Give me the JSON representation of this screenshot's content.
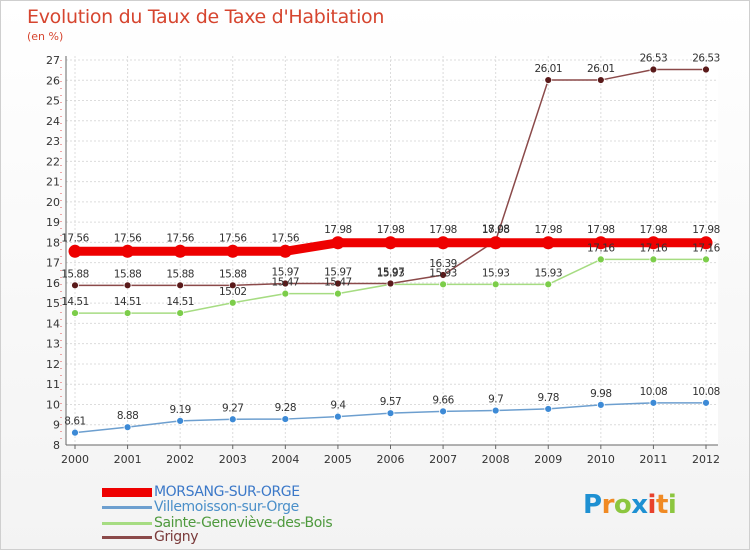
{
  "title": "Evolution du Taux de Taxe d'Habitation",
  "subtitle": "(en %)",
  "logo": {
    "text": "Proxiti",
    "colors": [
      "#1e90d2",
      "#f08a24",
      "#8cc63f",
      "#1e90d2",
      "#e8412c",
      "#f08a24",
      "#8cc63f"
    ]
  },
  "chart_data": {
    "type": "line",
    "x": [
      "2000",
      "2001",
      "2002",
      "2003",
      "2004",
      "2005",
      "2006",
      "2007",
      "2008",
      "2009",
      "2010",
      "2011",
      "2012"
    ],
    "ylim": [
      8,
      27
    ],
    "yticks": [
      "8",
      "9",
      "10",
      "11",
      "12",
      "13",
      "14",
      "15",
      "16",
      "17",
      "18",
      "19",
      "20",
      "21",
      "22",
      "23",
      "24",
      "25",
      "26",
      "27"
    ],
    "grid": true,
    "legend_position": "bottom-left",
    "series": [
      {
        "name": "MORSANG-SUR-ORGE",
        "color": "#ee0000",
        "marker": "#ee0000",
        "values": [
          17.56,
          17.56,
          17.56,
          17.56,
          17.56,
          17.98,
          17.98,
          17.98,
          17.98,
          17.98,
          17.98,
          17.98,
          17.98
        ],
        "labels": [
          "17.56",
          "17.56",
          "17.56",
          "17.56",
          "17.56",
          "17.98",
          "17.98",
          "17.98",
          "17.98",
          "17.98",
          "17.98",
          "17.98",
          "17.98"
        ]
      },
      {
        "name": "Villemoisson-sur-Orge",
        "color": "#6d9fcf",
        "marker": "#3d8ad6",
        "values": [
          8.61,
          8.88,
          9.19,
          9.27,
          9.28,
          9.4,
          9.57,
          9.66,
          9.7,
          9.78,
          9.98,
          10.08,
          10.08
        ],
        "labels": [
          "8.61",
          "8.88",
          "9.19",
          "9.27",
          "9.28",
          "9.4",
          "9.57",
          "9.66",
          "9.7",
          "9.78",
          "9.98",
          "10.08",
          "10.08"
        ]
      },
      {
        "name": "Sainte-Geneviève-des-Bois",
        "color": "#a6dc82",
        "marker": "#7ccd4a",
        "values": [
          14.51,
          14.51,
          14.51,
          15.02,
          15.47,
          15.47,
          15.93,
          15.93,
          15.93,
          15.93,
          17.16,
          17.16,
          17.16
        ],
        "labels": [
          "14.51",
          "14.51",
          "14.51",
          "15.02",
          "15.47",
          "15.47",
          "15.93",
          "15.93",
          "15.93",
          "15.93",
          "17.16",
          "17.16",
          "17.16"
        ]
      },
      {
        "name": "Grigny",
        "color": "#8b4a4a",
        "marker": "#5a1a1a",
        "values": [
          15.88,
          15.88,
          15.88,
          15.88,
          15.97,
          15.97,
          15.97,
          16.39,
          18.08,
          26.01,
          26.01,
          26.53,
          26.53
        ],
        "labels": [
          "15.88",
          "15.88",
          "15.88",
          "15.88",
          "15.97",
          "15.97",
          "15.97",
          "16.39",
          "18.08",
          "26.01",
          "26.01",
          "26.53",
          "26.53"
        ]
      }
    ]
  }
}
